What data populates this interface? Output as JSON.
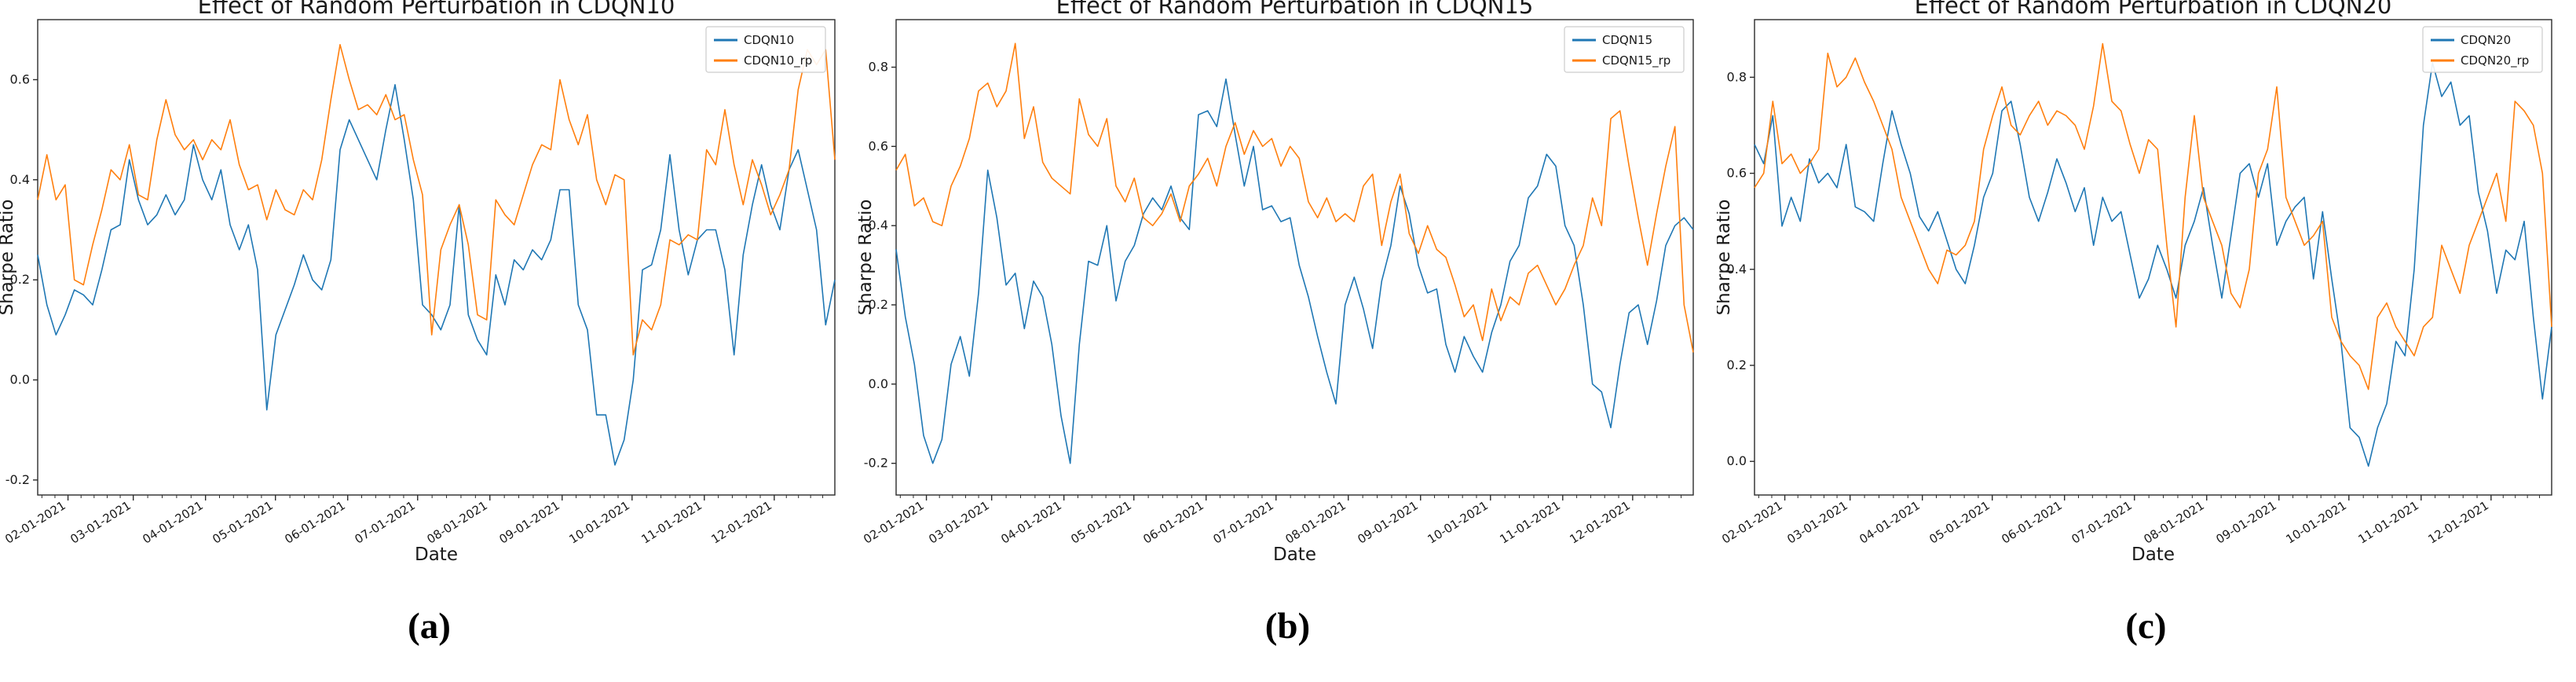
{
  "figure": {
    "captions": [
      "(a)",
      "(b)",
      "(c)"
    ]
  },
  "colors": {
    "series_blue": "#1f77b4",
    "series_orange": "#ff7f0e",
    "spine": "#2b2b2b",
    "legend_border": "#cccccc"
  },
  "chart_data": [
    {
      "type": "line",
      "title": "Effect of Random Perturbation in CDQN10",
      "xlabel": "Date",
      "ylabel": "Sharpe Ratio",
      "grid": false,
      "legend_position": "upper right",
      "x_tick_labels": [
        "02-01-2021",
        "03-01-2021",
        "04-01-2021",
        "05-01-2021",
        "06-01-2021",
        "07-01-2021",
        "08-01-2021",
        "09-01-2021",
        "10-01-2021",
        "11-01-2021",
        "12-01-2021"
      ],
      "x_tick_days": [
        13,
        41,
        72,
        102,
        133,
        163,
        194,
        225,
        255,
        286,
        316
      ],
      "x_total_days": 342,
      "ylim": [
        -0.23,
        0.72
      ],
      "ytick_labels": [
        "-0.2",
        "0.0",
        "0.2",
        "0.4",
        "0.6"
      ],
      "series": [
        {
          "name": "CDQN10",
          "color": "#1f77b4",
          "values": [
            0.25,
            0.15,
            0.09,
            0.13,
            0.18,
            0.17,
            0.15,
            0.22,
            0.3,
            0.31,
            0.44,
            0.36,
            0.31,
            0.33,
            0.37,
            0.33,
            0.36,
            0.47,
            0.4,
            0.36,
            0.42,
            0.31,
            0.26,
            0.31,
            0.22,
            -0.06,
            0.09,
            0.14,
            0.19,
            0.25,
            0.2,
            0.18,
            0.24,
            0.46,
            0.52,
            0.48,
            0.44,
            0.4,
            0.5,
            0.59,
            0.48,
            0.36,
            0.15,
            0.13,
            0.1,
            0.15,
            0.35,
            0.13,
            0.08,
            0.05,
            0.21,
            0.15,
            0.24,
            0.22,
            0.26,
            0.24,
            0.28,
            0.38,
            0.38,
            0.15,
            0.1,
            -0.07,
            -0.07,
            -0.17,
            -0.12,
            0.0,
            0.22,
            0.23,
            0.3,
            0.45,
            0.3,
            0.21,
            0.28,
            0.3,
            0.3,
            0.22,
            0.05,
            0.25,
            0.35,
            0.43,
            0.35,
            0.3,
            0.42,
            0.46,
            0.38,
            0.3,
            0.11,
            0.2
          ]
        },
        {
          "name": "CDQN10_rp",
          "color": "#ff7f0e",
          "values": [
            0.36,
            0.45,
            0.36,
            0.39,
            0.2,
            0.19,
            0.27,
            0.34,
            0.42,
            0.4,
            0.47,
            0.37,
            0.36,
            0.48,
            0.56,
            0.49,
            0.46,
            0.48,
            0.44,
            0.48,
            0.46,
            0.52,
            0.43,
            0.38,
            0.39,
            0.32,
            0.38,
            0.34,
            0.33,
            0.38,
            0.36,
            0.44,
            0.56,
            0.67,
            0.6,
            0.54,
            0.55,
            0.53,
            0.57,
            0.52,
            0.53,
            0.44,
            0.37,
            0.09,
            0.26,
            0.31,
            0.35,
            0.27,
            0.13,
            0.12,
            0.36,
            0.33,
            0.31,
            0.37,
            0.43,
            0.47,
            0.46,
            0.6,
            0.52,
            0.47,
            0.53,
            0.4,
            0.35,
            0.41,
            0.4,
            0.05,
            0.12,
            0.1,
            0.15,
            0.28,
            0.27,
            0.29,
            0.28,
            0.46,
            0.43,
            0.54,
            0.43,
            0.35,
            0.44,
            0.39,
            0.33,
            0.37,
            0.42,
            0.58,
            0.66,
            0.63,
            0.66,
            0.44
          ]
        }
      ]
    },
    {
      "type": "line",
      "title": "Effect of Random Perturbation in CDQN15",
      "xlabel": "Date",
      "ylabel": "Sharpe Ratio",
      "grid": false,
      "legend_position": "upper right",
      "x_tick_labels": [
        "02-01-2021",
        "03-01-2021",
        "04-01-2021",
        "05-01-2021",
        "06-01-2021",
        "07-01-2021",
        "08-01-2021",
        "09-01-2021",
        "10-01-2021",
        "11-01-2021",
        "12-01-2021"
      ],
      "x_tick_days": [
        13,
        41,
        72,
        102,
        133,
        163,
        194,
        225,
        255,
        286,
        316
      ],
      "x_total_days": 342,
      "ylim": [
        -0.28,
        0.92
      ],
      "ytick_labels": [
        "-0.2",
        "0.0",
        "0.2",
        "0.4",
        "0.6",
        "0.8"
      ],
      "series": [
        {
          "name": "CDQN15",
          "color": "#1f77b4",
          "values": [
            0.34,
            0.17,
            0.05,
            -0.13,
            -0.2,
            -0.14,
            0.05,
            0.12,
            0.02,
            0.23,
            0.54,
            0.42,
            0.25,
            0.28,
            0.14,
            0.26,
            0.22,
            0.1,
            -0.08,
            -0.2,
            0.1,
            0.31,
            0.3,
            0.4,
            0.21,
            0.31,
            0.35,
            0.43,
            0.47,
            0.44,
            0.5,
            0.42,
            0.39,
            0.68,
            0.69,
            0.65,
            0.77,
            0.63,
            0.5,
            0.6,
            0.44,
            0.45,
            0.41,
            0.42,
            0.3,
            0.22,
            0.12,
            0.03,
            -0.05,
            0.2,
            0.27,
            0.19,
            0.09,
            0.26,
            0.35,
            0.5,
            0.43,
            0.3,
            0.23,
            0.24,
            0.1,
            0.03,
            0.12,
            0.07,
            0.03,
            0.13,
            0.2,
            0.31,
            0.35,
            0.47,
            0.5,
            0.58,
            0.55,
            0.4,
            0.35,
            0.2,
            0.0,
            -0.02,
            -0.11,
            0.05,
            0.18,
            0.2,
            0.1,
            0.21,
            0.35,
            0.4,
            0.42,
            0.39
          ]
        },
        {
          "name": "CDQN15_rp",
          "color": "#ff7f0e",
          "values": [
            0.54,
            0.58,
            0.45,
            0.47,
            0.41,
            0.4,
            0.5,
            0.55,
            0.62,
            0.74,
            0.76,
            0.7,
            0.74,
            0.86,
            0.62,
            0.7,
            0.56,
            0.52,
            0.5,
            0.48,
            0.72,
            0.63,
            0.6,
            0.67,
            0.5,
            0.46,
            0.52,
            0.42,
            0.4,
            0.43,
            0.48,
            0.41,
            0.5,
            0.53,
            0.57,
            0.5,
            0.6,
            0.66,
            0.58,
            0.64,
            0.6,
            0.62,
            0.55,
            0.6,
            0.57,
            0.46,
            0.42,
            0.47,
            0.41,
            0.43,
            0.41,
            0.5,
            0.53,
            0.35,
            0.46,
            0.53,
            0.38,
            0.33,
            0.4,
            0.34,
            0.32,
            0.25,
            0.17,
            0.2,
            0.11,
            0.24,
            0.16,
            0.22,
            0.2,
            0.28,
            0.3,
            0.25,
            0.2,
            0.24,
            0.3,
            0.35,
            0.47,
            0.4,
            0.67,
            0.69,
            0.55,
            0.42,
            0.3,
            0.43,
            0.55,
            0.65,
            0.2,
            0.08
          ]
        }
      ]
    },
    {
      "type": "line",
      "title": "Effect of Random Perturbation in CDQN20",
      "xlabel": "Date",
      "ylabel": "Sharpe Ratio",
      "grid": false,
      "legend_position": "upper right",
      "x_tick_labels": [
        "02-01-2021",
        "03-01-2021",
        "04-01-2021",
        "05-01-2021",
        "06-01-2021",
        "07-01-2021",
        "08-01-2021",
        "09-01-2021",
        "10-01-2021",
        "11-01-2021",
        "12-01-2021"
      ],
      "x_tick_days": [
        13,
        41,
        72,
        102,
        133,
        163,
        194,
        225,
        255,
        286,
        316
      ],
      "x_total_days": 342,
      "ylim": [
        -0.07,
        0.92
      ],
      "ytick_labels": [
        "0.0",
        "0.2",
        "0.4",
        "0.6",
        "0.8"
      ],
      "series": [
        {
          "name": "CDQN20",
          "color": "#1f77b4",
          "values": [
            0.66,
            0.62,
            0.72,
            0.49,
            0.55,
            0.5,
            0.63,
            0.58,
            0.6,
            0.57,
            0.66,
            0.53,
            0.52,
            0.5,
            0.62,
            0.73,
            0.66,
            0.6,
            0.51,
            0.48,
            0.52,
            0.46,
            0.4,
            0.37,
            0.45,
            0.55,
            0.6,
            0.73,
            0.75,
            0.66,
            0.55,
            0.5,
            0.56,
            0.63,
            0.58,
            0.52,
            0.57,
            0.45,
            0.55,
            0.5,
            0.52,
            0.43,
            0.34,
            0.38,
            0.45,
            0.4,
            0.34,
            0.45,
            0.5,
            0.57,
            0.45,
            0.34,
            0.47,
            0.6,
            0.62,
            0.55,
            0.62,
            0.45,
            0.5,
            0.53,
            0.55,
            0.38,
            0.52,
            0.38,
            0.25,
            0.07,
            0.05,
            -0.01,
            0.07,
            0.12,
            0.25,
            0.22,
            0.4,
            0.7,
            0.83,
            0.76,
            0.79,
            0.7,
            0.72,
            0.56,
            0.48,
            0.35,
            0.44,
            0.42,
            0.5,
            0.3,
            0.13,
            0.28
          ]
        },
        {
          "name": "CDQN20_rp",
          "color": "#ff7f0e",
          "values": [
            0.57,
            0.6,
            0.75,
            0.62,
            0.64,
            0.6,
            0.62,
            0.65,
            0.85,
            0.78,
            0.8,
            0.84,
            0.79,
            0.75,
            0.7,
            0.65,
            0.55,
            0.5,
            0.45,
            0.4,
            0.37,
            0.44,
            0.43,
            0.45,
            0.5,
            0.65,
            0.72,
            0.78,
            0.7,
            0.68,
            0.72,
            0.75,
            0.7,
            0.73,
            0.72,
            0.7,
            0.65,
            0.74,
            0.87,
            0.75,
            0.73,
            0.66,
            0.6,
            0.67,
            0.65,
            0.45,
            0.28,
            0.55,
            0.72,
            0.55,
            0.5,
            0.45,
            0.35,
            0.32,
            0.4,
            0.6,
            0.65,
            0.78,
            0.55,
            0.5,
            0.45,
            0.47,
            0.5,
            0.3,
            0.25,
            0.22,
            0.2,
            0.15,
            0.3,
            0.33,
            0.28,
            0.25,
            0.22,
            0.28,
            0.3,
            0.45,
            0.4,
            0.35,
            0.45,
            0.5,
            0.55,
            0.6,
            0.5,
            0.75,
            0.73,
            0.7,
            0.6,
            0.28
          ]
        }
      ]
    }
  ]
}
